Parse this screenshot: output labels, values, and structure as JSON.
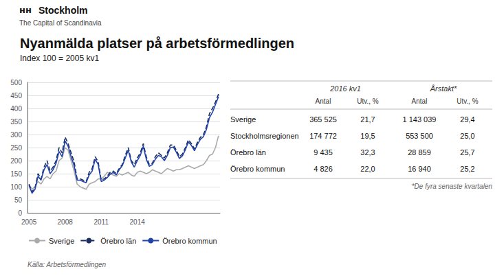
{
  "chart_data": {
    "type": "line",
    "title": "Nyanmälda platser på arbetsförmedlingen",
    "subtitle": "Index 100 = 2005 kv1",
    "source": "Källa: Arbetsförmedlingen",
    "annotations": [
      "ʜʜ",
      "Stockholm",
      "The Capital of Scandinavia"
    ],
    "categories": [
      "2005",
      null,
      null,
      null,
      null,
      null,
      null,
      null,
      null,
      null,
      null,
      null,
      "2008",
      null,
      null,
      null,
      null,
      null,
      null,
      null,
      null,
      null,
      null,
      null,
      "2011",
      null,
      null,
      null,
      null,
      null,
      null,
      null,
      null,
      null,
      null,
      null,
      "2014",
      null,
      null,
      null,
      null,
      null,
      null,
      null,
      null,
      null,
      null,
      null,
      null,
      null,
      null,
      null,
      null,
      null,
      null,
      null,
      null,
      null,
      null,
      null,
      null,
      null,
      null,
      null
    ],
    "series": [
      {
        "name": "Sverige",
        "color": "#aaaaaa",
        "line_style": "solid",
        "values": [
          108,
          90,
          100,
          120,
          110,
          130,
          140,
          130,
          150,
          160,
          200,
          210,
          250,
          240,
          200,
          160,
          110,
          100,
          95,
          90,
          110,
          115,
          120,
          130,
          130,
          140,
          155,
          150,
          145,
          140,
          150,
          145,
          150,
          155,
          145,
          140,
          155,
          160,
          155,
          150,
          155,
          165,
          160,
          155,
          150,
          160,
          170,
          165,
          160,
          165,
          165,
          170,
          175,
          180,
          175,
          170,
          175,
          180,
          185,
          200,
          220,
          225,
          250,
          295
        ]
      },
      {
        "name": "Örebro län",
        "color": "#1a2f5e",
        "line_style": "dashed",
        "values": [
          110,
          80,
          95,
          150,
          130,
          175,
          200,
          160,
          175,
          200,
          250,
          230,
          290,
          265,
          230,
          195,
          130,
          130,
          125,
          120,
          155,
          170,
          215,
          195,
          125,
          130,
          140,
          155,
          160,
          150,
          170,
          185,
          220,
          250,
          200,
          185,
          210,
          230,
          265,
          215,
          185,
          190,
          215,
          230,
          220,
          210,
          230,
          260,
          260,
          240,
          215,
          225,
          250,
          280,
          265,
          245,
          270,
          290,
          300,
          330,
          380,
          400,
          425,
          455
        ]
      },
      {
        "name": "Örebro kommun",
        "color": "#2244aa",
        "line_style": "solid",
        "values": [
          105,
          75,
          90,
          140,
          125,
          165,
          185,
          150,
          165,
          190,
          235,
          215,
          275,
          255,
          215,
          180,
          125,
          125,
          120,
          115,
          145,
          160,
          205,
          185,
          120,
          125,
          135,
          148,
          155,
          145,
          165,
          180,
          210,
          240,
          195,
          175,
          200,
          220,
          255,
          205,
          178,
          185,
          205,
          220,
          215,
          200,
          220,
          250,
          252,
          232,
          208,
          218,
          242,
          272,
          258,
          238,
          262,
          282,
          292,
          320,
          365,
          385,
          415,
          445
        ]
      }
    ],
    "ylim": [
      0,
      500
    ],
    "yticks": [
      0,
      50,
      100,
      150,
      200,
      250,
      300,
      350,
      400,
      450,
      500
    ],
    "grid": true,
    "legend": "bottom",
    "table": {
      "header": [
        "2016 kv1",
        "Årstakt*"
      ],
      "subheader": [
        "Antal",
        "Utv., %",
        "Antal",
        "Utv., %"
      ],
      "rows": [
        [
          "Sverige",
          "365 525",
          "21,7",
          "1 143 039",
          "29,4"
        ],
        [
          "Stockholmsregionen",
          "174 772",
          "19,5",
          "553 500",
          "25,0"
        ],
        [
          "Örebro län",
          "9 435",
          "32,3",
          "28 859",
          "25,7"
        ],
        [
          "Örebro kommun",
          "4 826",
          "22,0",
          "16 940",
          "25,2"
        ]
      ],
      "footnote": "*De fyra senaste kvartalen"
    }
  }
}
